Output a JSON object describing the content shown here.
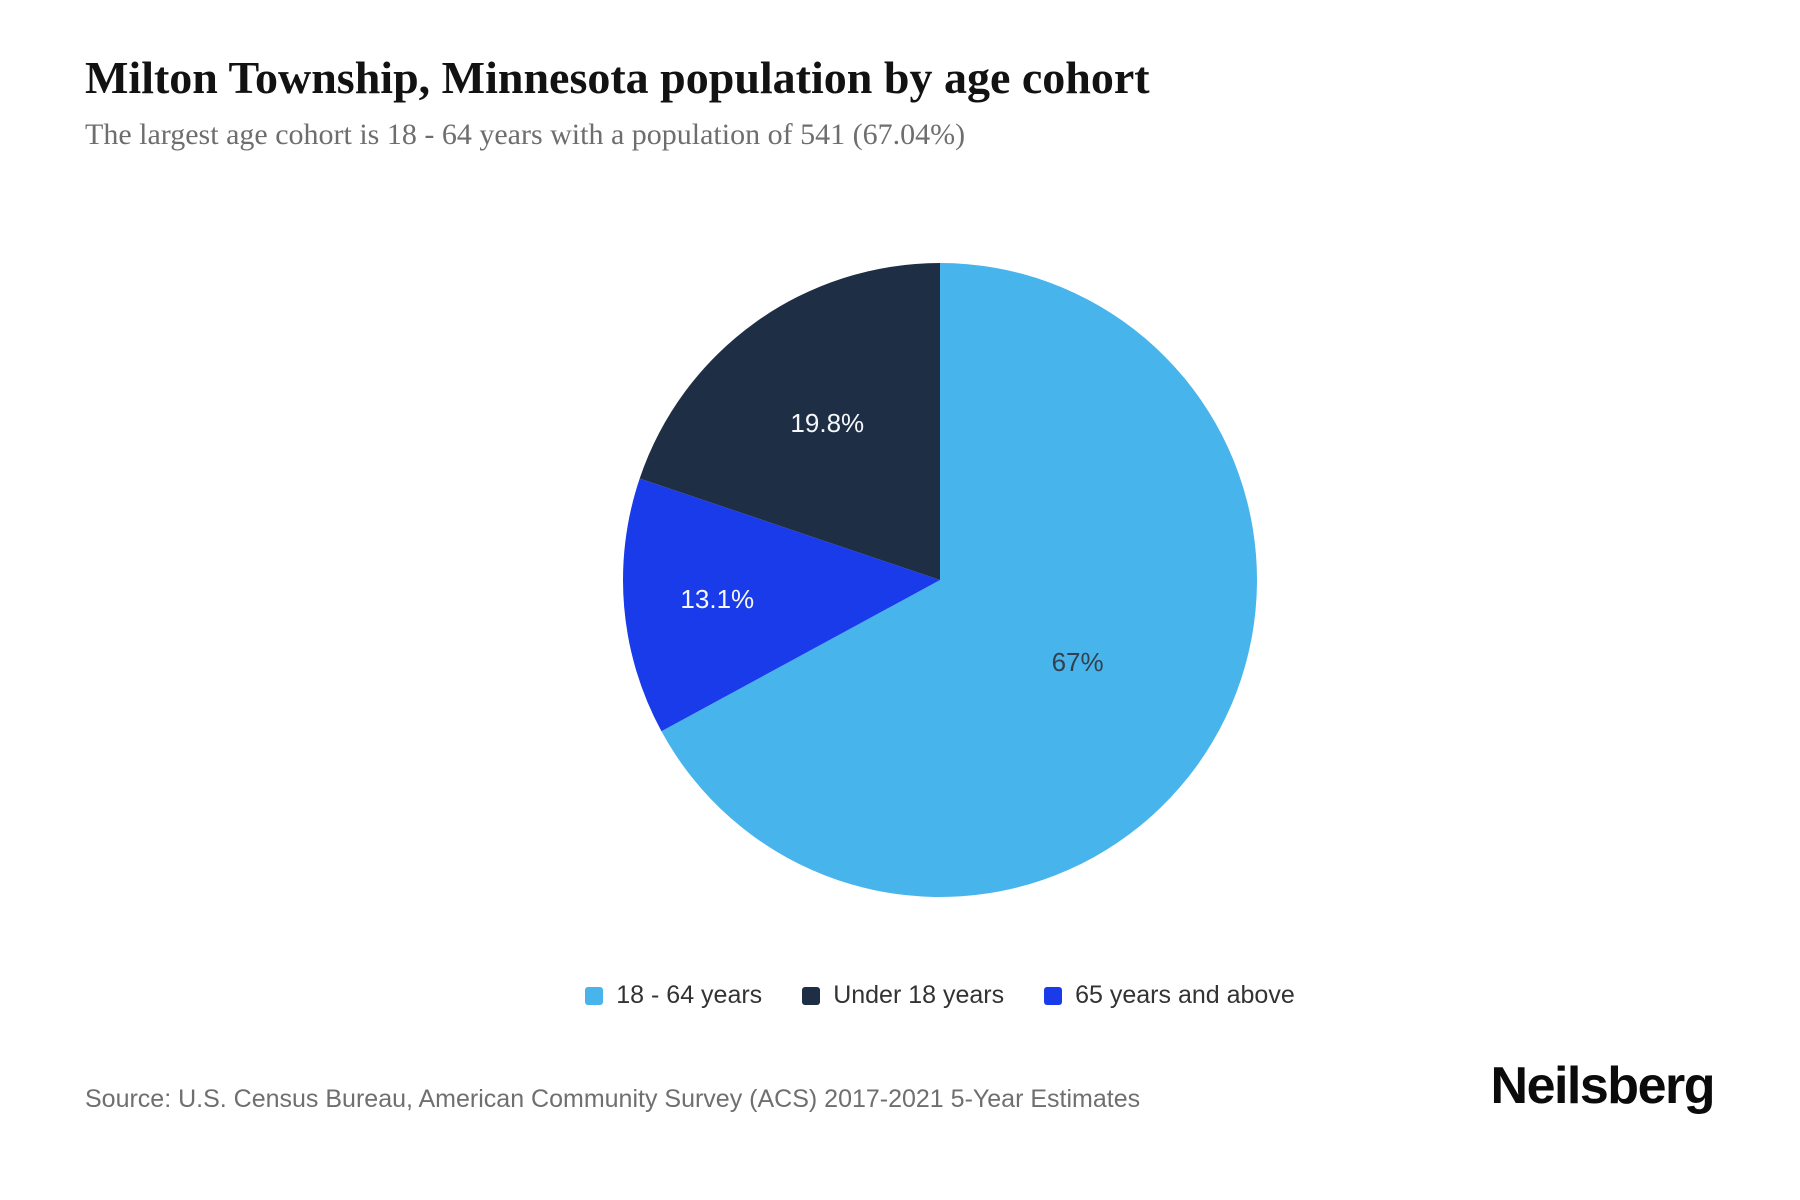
{
  "header": {
    "title": "Milton Township, Minnesota population by age cohort",
    "subtitle": "The largest age cohort is 18 - 64 years with a population of 541 (67.04%)"
  },
  "chart_data": {
    "type": "pie",
    "title": "Milton Township, Minnesota population by age cohort",
    "start_angle_deg": 0,
    "direction": "clockwise",
    "slices": [
      {
        "name": "18 - 64 years",
        "value_pct": 67.04,
        "display_label": "67%",
        "color": "#47b4ec",
        "label_color": "#33414f",
        "label_radius_frac": 0.505
      },
      {
        "name": "65 years and above",
        "value_pct": 13.1,
        "display_label": "13.1%",
        "color": "#1a3be9",
        "label_color": "#f5f7fa",
        "label_radius_frac": 0.705
      },
      {
        "name": "Under 18 years",
        "value_pct": 19.8,
        "display_label": "19.8%",
        "color": "#1d2e45",
        "label_color": "#f5f7fa",
        "label_radius_frac": 0.61
      }
    ]
  },
  "legend": {
    "items": [
      {
        "label": "18 - 64 years",
        "color": "#47b4ec"
      },
      {
        "label": "Under 18 years",
        "color": "#1d2e45"
      },
      {
        "label": "65 years and above",
        "color": "#1a3be9"
      }
    ]
  },
  "footer": {
    "source": "Source: U.S. Census Bureau, American Community Survey (ACS) 2017-2021 5-Year Estimates",
    "brand": "Neilsberg"
  }
}
